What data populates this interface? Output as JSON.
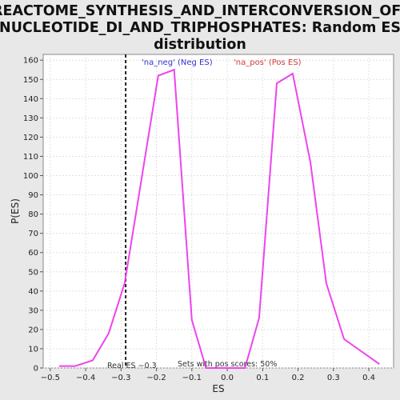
{
  "chart_data": {
    "type": "line",
    "title_lines": [
      "REACTOME_SYNTHESIS_AND_INTERCONVERSION_OF_",
      "NUCLEOTIDE_DI_AND_TRIPHOSPHATES: Random ES",
      "distribution"
    ],
    "xlabel": "ES",
    "ylabel": "P(ES)",
    "xlim": [
      -0.52,
      0.47
    ],
    "ylim": [
      0,
      163
    ],
    "x_ticks": [
      -0.5,
      -0.4,
      -0.3,
      -0.2,
      -0.1,
      0.0,
      0.1,
      0.2,
      0.3,
      0.4
    ],
    "x_tick_labels": [
      "−0.5",
      "−0.4",
      "−0.3",
      "−0.2",
      "−0.1",
      "0.0",
      "0.1",
      "0.2",
      "0.3",
      "0.4"
    ],
    "y_ticks": [
      0,
      10,
      20,
      30,
      40,
      50,
      60,
      70,
      80,
      90,
      100,
      110,
      120,
      130,
      140,
      150,
      160
    ],
    "y_tick_labels": [
      "0",
      "10",
      "20",
      "30",
      "40",
      "50",
      "60",
      "70",
      "80",
      "90",
      "100",
      "110",
      "120",
      "130",
      "140",
      "150",
      "160"
    ],
    "grid": true,
    "series": [
      {
        "color": "#ee44ee",
        "x": [
          -0.475,
          -0.43,
          -0.38,
          -0.335,
          -0.29,
          -0.195,
          -0.15,
          -0.1,
          -0.06,
          -0.02,
          0.02,
          0.05,
          0.09,
          0.14,
          0.185,
          0.235,
          0.28,
          0.33,
          0.43
        ],
        "y": [
          1,
          1,
          4,
          18,
          44,
          152,
          155,
          25,
          0,
          0,
          0,
          0,
          26,
          148,
          153,
          107,
          44,
          15,
          2
        ]
      }
    ],
    "legend": [
      {
        "label": "'na_neg' (Neg ES)",
        "color": "#3333cc"
      },
      {
        "label": "'na_pos' (Pos ES)",
        "color": "#d13a3a"
      }
    ],
    "real_es": {
      "value": -0.287,
      "label": "Real ES −0.3"
    },
    "annotation": "Sets with pos scores: 50%"
  }
}
